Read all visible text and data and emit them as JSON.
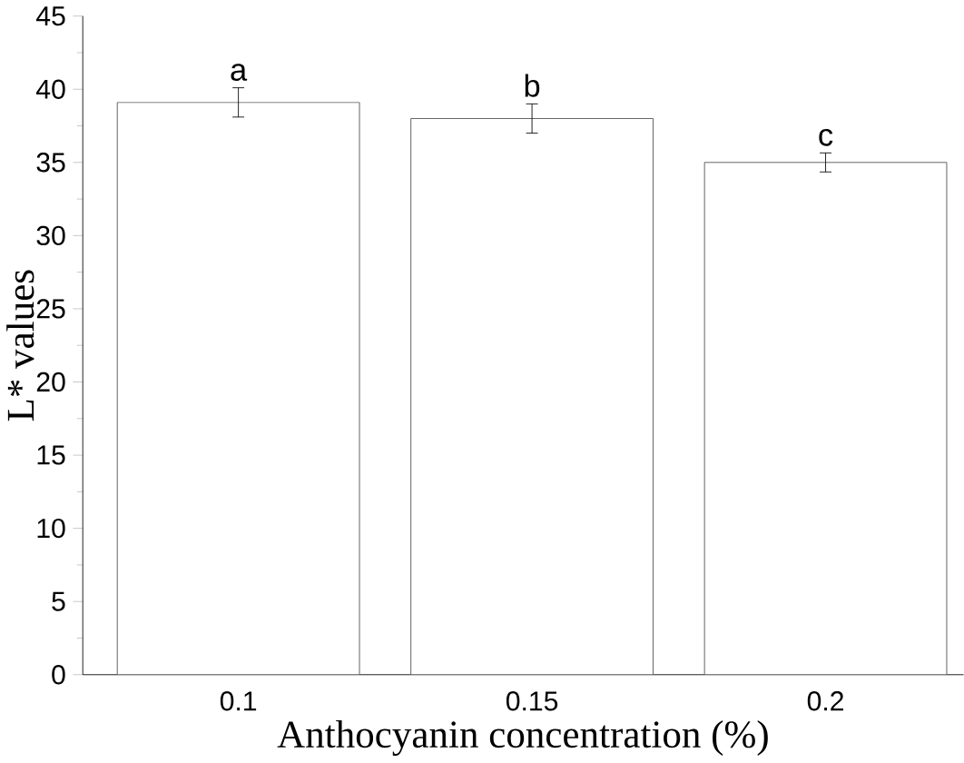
{
  "chart_data": {
    "type": "bar",
    "xlabel": "Anthocyanin concentration (%)",
    "ylabel": "L* values",
    "categories": [
      "0.1",
      "0.15",
      "0.2"
    ],
    "values": [
      39.1,
      38.0,
      35.0
    ],
    "errors": [
      1.0,
      1.0,
      0.65
    ],
    "color": "#ffffff",
    "ylim": [
      0,
      45
    ],
    "yticks": [
      0,
      5,
      10,
      15,
      20,
      25,
      30,
      35,
      40,
      45
    ],
    "annotations": [
      {
        "text": "a",
        "x": "0.1",
        "y": 40.1
      },
      {
        "text": "b",
        "x": "0.15",
        "y": 39.0
      },
      {
        "text": "c",
        "x": "0.2",
        "y": 35.65
      }
    ],
    "grid": false
  }
}
